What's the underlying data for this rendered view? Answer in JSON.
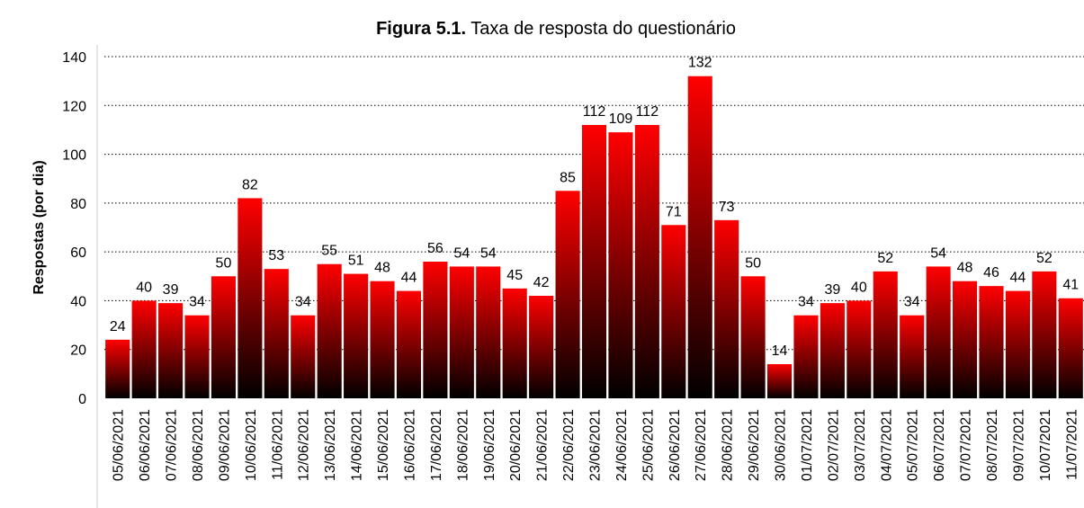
{
  "chart_data": {
    "type": "bar",
    "title_label": "Figura 5.1.",
    "title": "Taxa de resposta do questionário",
    "y_label": "Respostas (por dia)",
    "categories": [
      "05/06/2021",
      "06/06/2021",
      "07/06/2021",
      "08/06/2021",
      "09/06/2021",
      "10/06/2021",
      "11/06/2021",
      "12/06/2021",
      "13/06/2021",
      "14/06/2021",
      "15/06/2021",
      "16/06/2021",
      "17/06/2021",
      "18/06/2021",
      "19/06/2021",
      "20/06/2021",
      "21/06/2021",
      "22/06/2021",
      "23/06/2021",
      "24/06/2021",
      "25/06/2021",
      "26/06/2021",
      "27/06/2021",
      "28/06/2021",
      "29/06/2021",
      "30/06/2021",
      "01/07/2021",
      "02/07/2021",
      "03/07/2021",
      "04/07/2021",
      "05/07/2021",
      "06/07/2021",
      "07/07/2021",
      "08/07/2021",
      "09/07/2021",
      "10/07/2021",
      "11/07/2021"
    ],
    "values": [
      24,
      40,
      39,
      34,
      50,
      82,
      53,
      34,
      55,
      51,
      48,
      44,
      56,
      54,
      54,
      45,
      42,
      85,
      112,
      109,
      112,
      71,
      132,
      73,
      50,
      14,
      34,
      39,
      40,
      52,
      34,
      54,
      48,
      46,
      44,
      52,
      41
    ],
    "gradient": [
      "#ff0000",
      "#000000"
    ],
    "ylim": [
      0,
      140
    ],
    "yticks": [
      0,
      20,
      40,
      60,
      80,
      100,
      120,
      140
    ],
    "grid": true
  }
}
